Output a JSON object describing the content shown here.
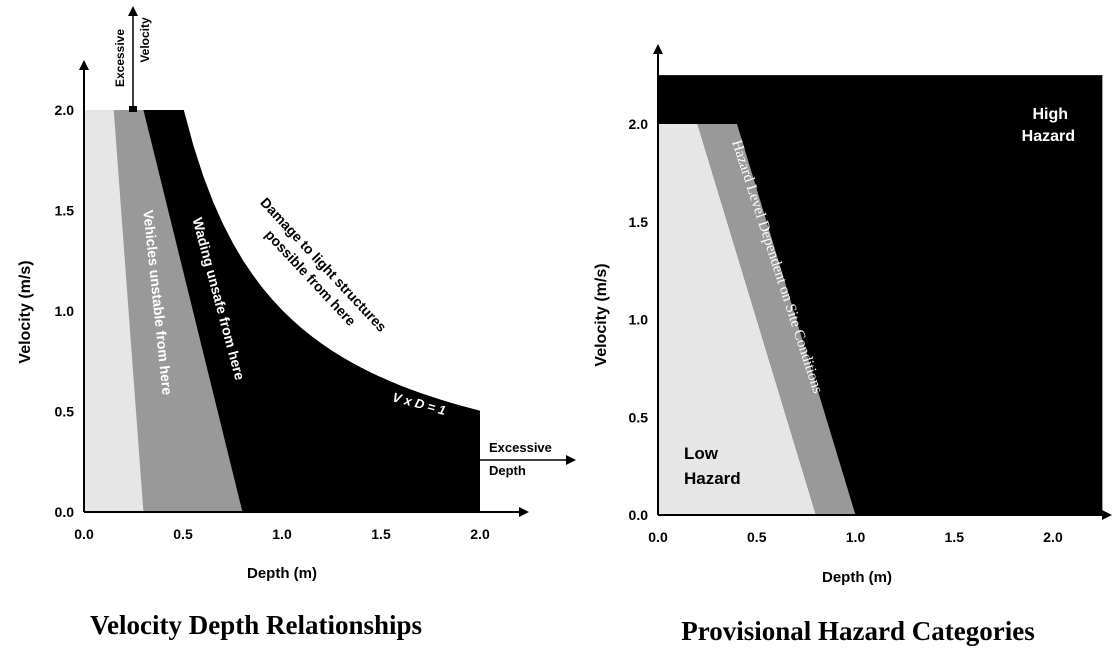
{
  "chart_data": [
    {
      "type": "area",
      "title": "Velocity Depth Relationships",
      "xlabel": "Depth (m)",
      "ylabel": "Velocity (m/s)",
      "xlim": [
        0,
        2.2
      ],
      "ylim": [
        0,
        2.2
      ],
      "x_ticks": [
        "0.0",
        "0.5",
        "1.0",
        "1.5",
        "2.0"
      ],
      "y_ticks": [
        "0.0",
        "0.5",
        "1.0",
        "1.5",
        "2.0"
      ],
      "regions": [
        {
          "label": "",
          "color": "#e6e6e6",
          "polygon": [
            [
              0,
              0
            ],
            [
              0.3,
              0
            ],
            [
              0.15,
              2.0
            ],
            [
              0,
              2.0
            ]
          ]
        },
        {
          "label": "Vehicles unstable from here",
          "color": "#999999",
          "polygon": [
            [
              0.3,
              0
            ],
            [
              0.8,
              0
            ],
            [
              0.3,
              2.0
            ],
            [
              0.15,
              2.0
            ]
          ]
        },
        {
          "label": "Wading unsafe from here",
          "color": "#000000",
          "polygon": [
            [
              0.8,
              0
            ],
            [
              2.0,
              0
            ],
            [
              2.0,
              0.5
            ],
            [
              0.5,
              2.0
            ],
            [
              0.3,
              2.0
            ]
          ]
        }
      ],
      "curve": {
        "label": "V x D = 1",
        "x": [
          0.5,
          0.6,
          0.7,
          0.8,
          0.9,
          1.0,
          1.2,
          1.4,
          1.6,
          1.8,
          2.0
        ],
        "y": [
          2.0,
          1.67,
          1.43,
          1.25,
          1.11,
          1.0,
          0.83,
          0.71,
          0.63,
          0.56,
          0.5
        ]
      },
      "annotations": {
        "damage": [
          "Damage to light structures",
          "possible from here"
        ],
        "excessive_velocity": [
          "Excessive",
          "Velocity"
        ],
        "excessive_depth": [
          "Excessive",
          "Depth"
        ]
      }
    },
    {
      "type": "area",
      "title": "Provisional Hazard Categories",
      "xlabel": "Depth (m)",
      "ylabel": "Velocity (m/s)",
      "xlim": [
        0,
        2.25
      ],
      "ylim": [
        0,
        2.25
      ],
      "x_ticks": [
        "0.0",
        "0.5",
        "1.0",
        "1.5",
        "2.0"
      ],
      "y_ticks": [
        "0.0",
        "0.5",
        "1.0",
        "1.5",
        "2.0"
      ],
      "regions": [
        {
          "label": "High Hazard",
          "color": "#000000"
        },
        {
          "label": "Low Hazard",
          "color": "#e6e6e6",
          "polygon": [
            [
              0,
              0
            ],
            [
              0.8,
              0
            ],
            [
              0.2,
              2.0
            ],
            [
              0,
              2.0
            ]
          ]
        },
        {
          "label": "Hazard Level Dependent on Site Conditions",
          "color": "#999999",
          "polygon": [
            [
              0.8,
              0
            ],
            [
              1.0,
              0
            ],
            [
              0.4,
              2.0
            ],
            [
              0.2,
              2.0
            ]
          ]
        }
      ]
    }
  ],
  "text": {
    "left_title": "Velocity Depth Relationships",
    "right_title": "Provisional Hazard Categories",
    "axis_x": "Depth (m)",
    "axis_y": "Velocity (m/s)",
    "vehicles": "Vehicles unstable from here",
    "wading": "Wading unsafe from here",
    "damage_1": "Damage to light structures",
    "damage_2": "possible from here",
    "vxd": "V x D = 1",
    "ev_1": "Excessive",
    "ev_2": "Velocity",
    "ed_1": "Excessive",
    "ed_2": "Depth",
    "high_1": "High",
    "high_2": "Hazard",
    "low_1": "Low",
    "low_2": "Hazard",
    "site": "Hazard Level Dependent on Site Conditions"
  }
}
